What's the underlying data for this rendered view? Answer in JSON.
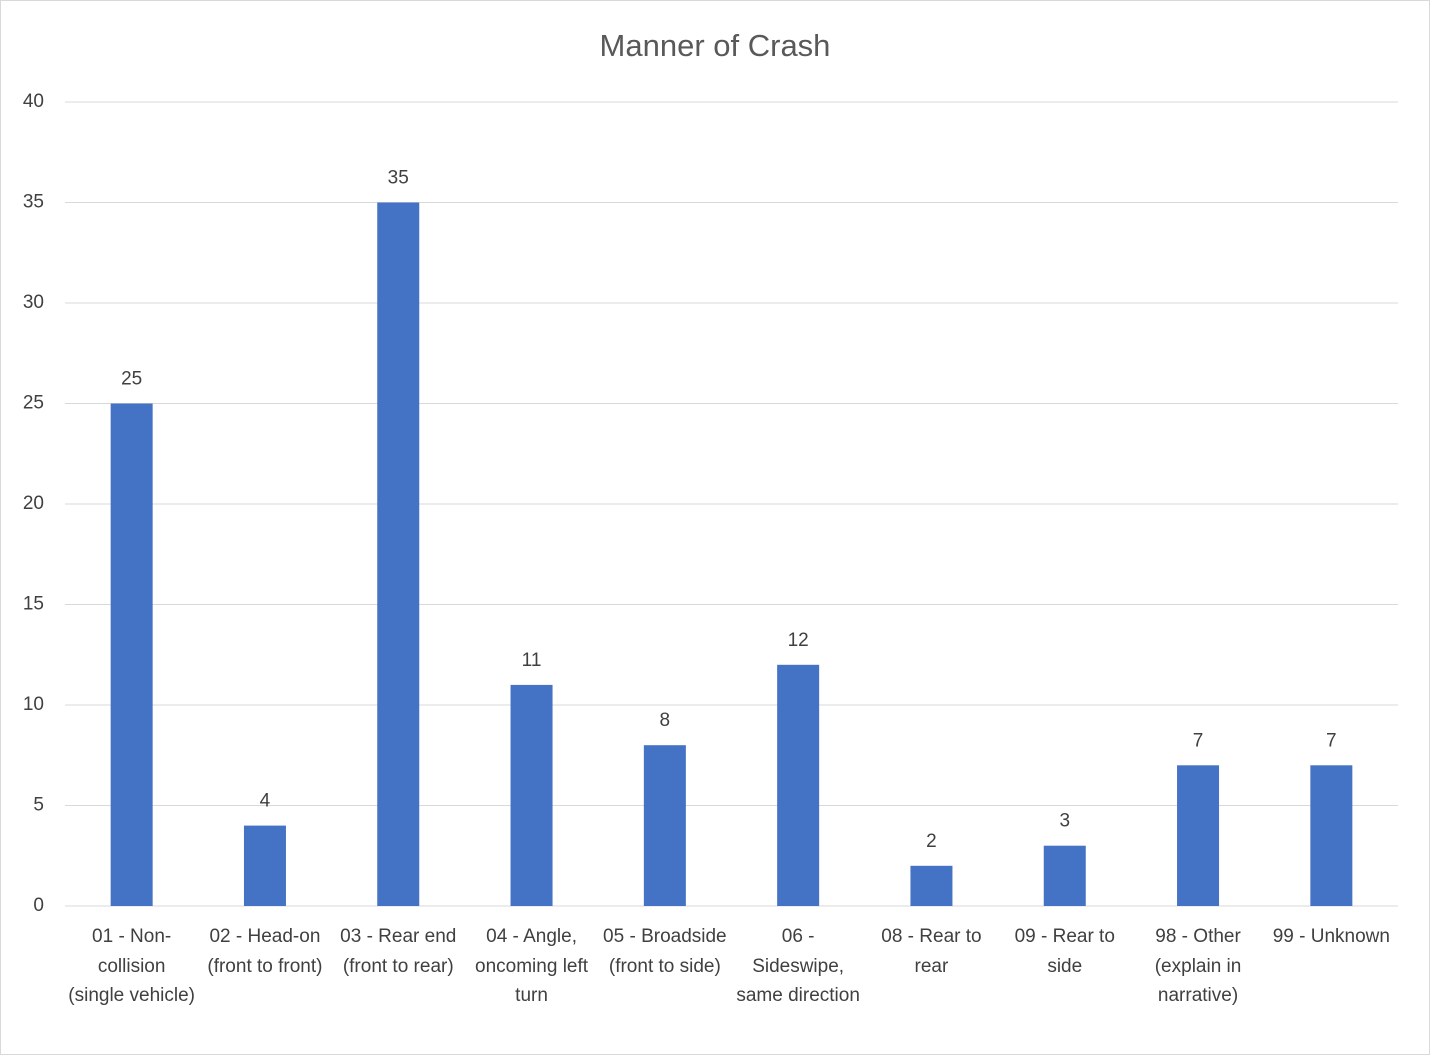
{
  "chart_data": {
    "type": "bar",
    "title": "Manner of Crash",
    "categories": [
      "01 - Non-collision (single vehicle)",
      "02 - Head-on (front to front)",
      "03 - Rear end (front to rear)",
      "04 - Angle, oncoming left turn",
      "05 - Broadside (front to side)",
      "06 - Sideswipe, same direction",
      "08 - Rear to rear",
      "09 - Rear to side",
      "98 - Other (explain in narrative)",
      "99 - Unknown"
    ],
    "values": [
      25,
      4,
      35,
      11,
      8,
      12,
      2,
      3,
      7,
      7
    ],
    "color": "#4472c4",
    "ylim": [
      0,
      40
    ],
    "yticks": [
      0,
      5,
      10,
      15,
      20,
      25,
      30,
      35,
      40
    ],
    "grid": true
  }
}
